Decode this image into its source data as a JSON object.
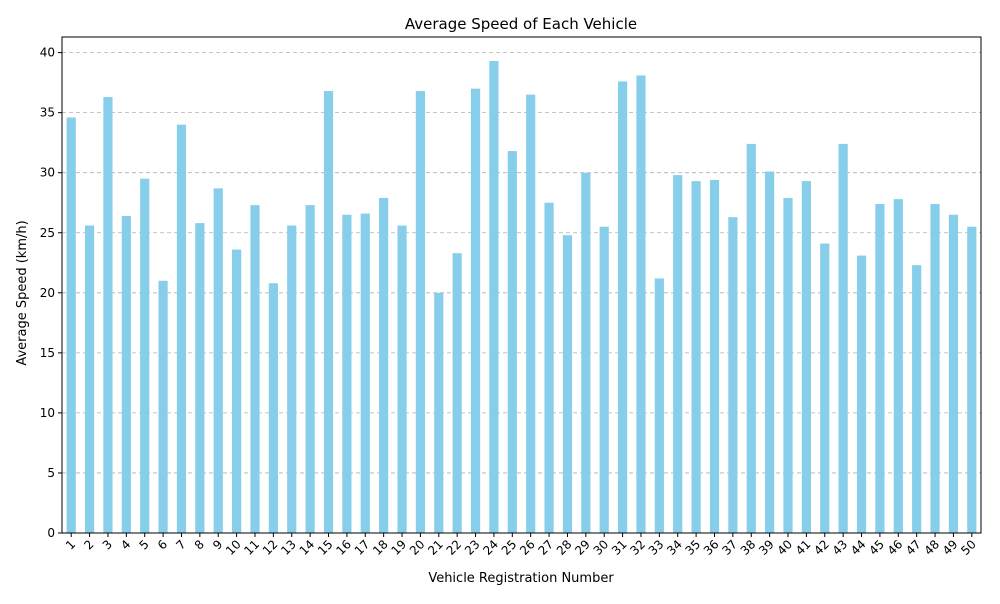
{
  "chart_data": {
    "type": "bar",
    "title": "Average Speed of Each Vehicle",
    "xlabel": "Vehicle Registration Number",
    "ylabel": "Average Speed (km/h)",
    "ylim": [
      0,
      41.3
    ],
    "yticks": [
      0,
      5,
      10,
      15,
      20,
      25,
      30,
      35,
      40
    ],
    "grid": "y-dashed",
    "bar_color": "#87ceeb",
    "categories": [
      "1",
      "2",
      "3",
      "4",
      "5",
      "6",
      "7",
      "8",
      "9",
      "10",
      "11",
      "12",
      "13",
      "14",
      "15",
      "16",
      "17",
      "18",
      "19",
      "20",
      "21",
      "22",
      "23",
      "24",
      "25",
      "26",
      "27",
      "28",
      "29",
      "30",
      "31",
      "32",
      "33",
      "34",
      "35",
      "36",
      "37",
      "38",
      "39",
      "40",
      "41",
      "42",
      "43",
      "44",
      "45",
      "46",
      "47",
      "48",
      "49",
      "50"
    ],
    "values": [
      34.6,
      25.6,
      36.3,
      26.4,
      29.5,
      21.0,
      34.0,
      25.8,
      28.7,
      23.6,
      27.3,
      20.8,
      25.6,
      27.3,
      36.8,
      26.5,
      26.6,
      27.9,
      25.6,
      36.8,
      20.0,
      23.3,
      37.0,
      39.3,
      31.8,
      36.5,
      27.5,
      24.8,
      30.0,
      25.5,
      37.6,
      38.1,
      21.2,
      29.8,
      29.3,
      29.4,
      26.3,
      32.4,
      30.1,
      27.9,
      29.3,
      24.1,
      32.4,
      23.1,
      27.4,
      27.8,
      22.3,
      27.4,
      26.5,
      25.5
    ]
  }
}
